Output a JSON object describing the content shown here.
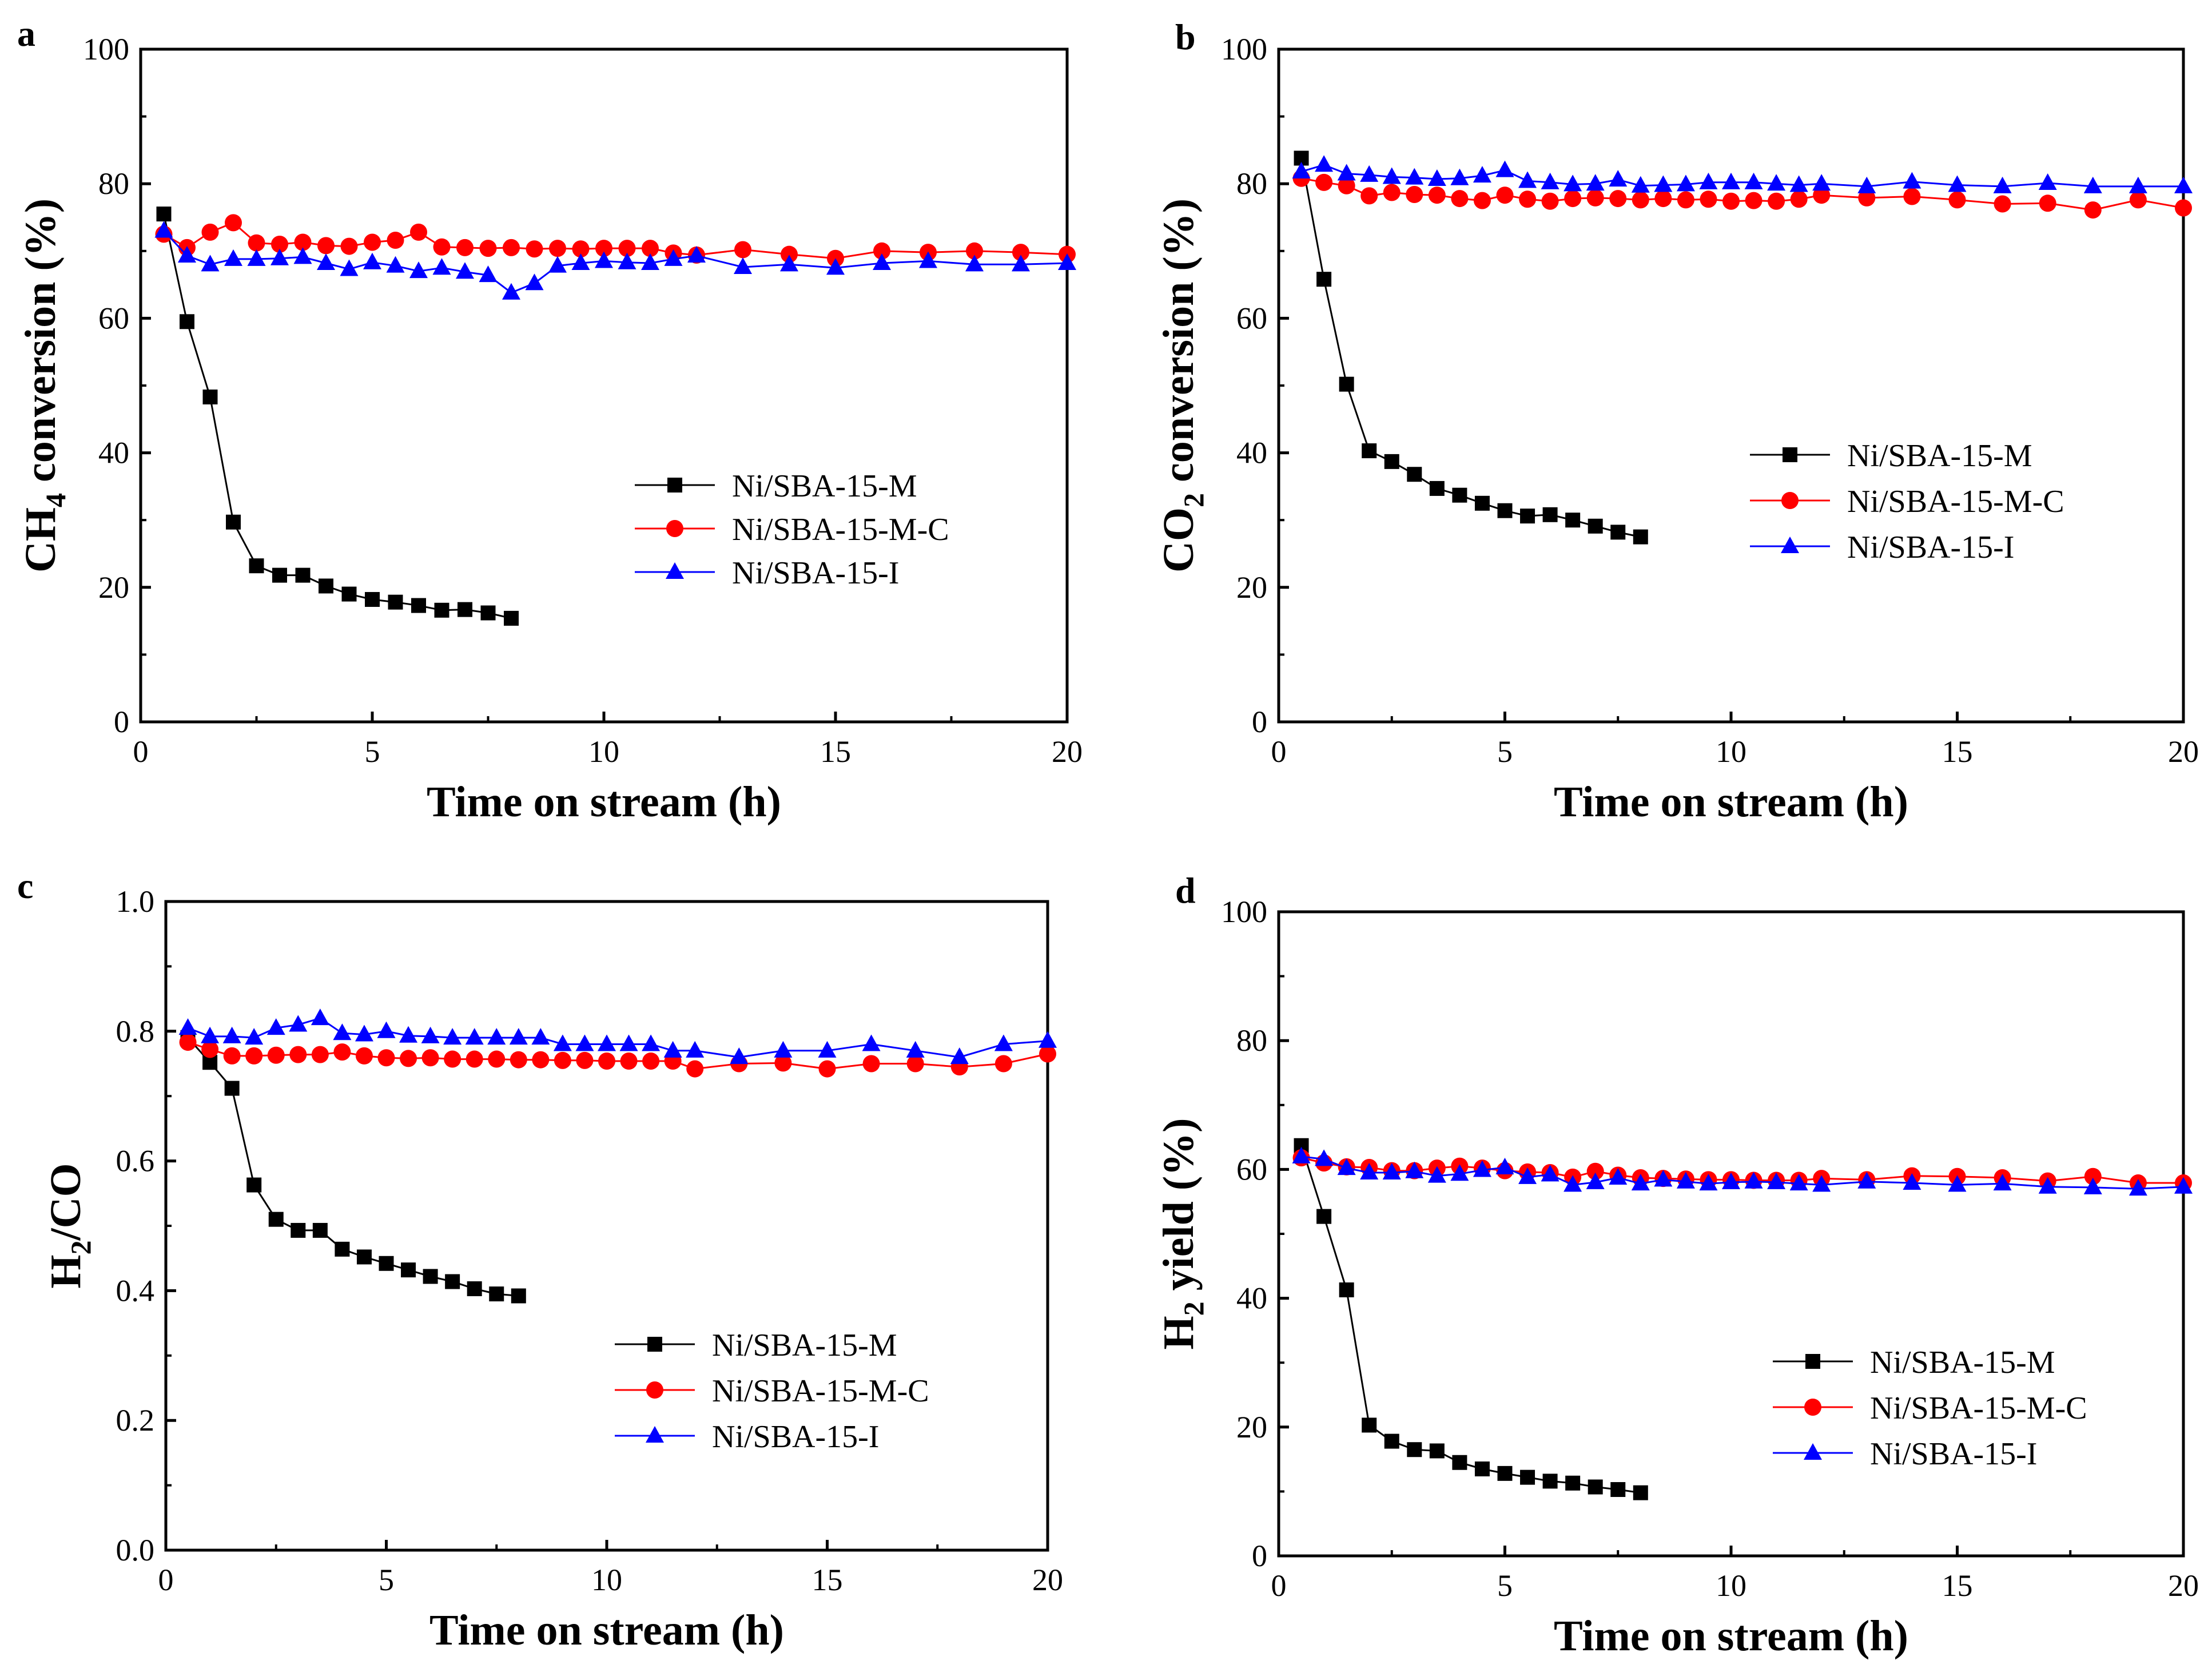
{
  "figure": {
    "series_styles": [
      {
        "name": "Ni/SBA-15-M",
        "color": "#000000",
        "marker": "square"
      },
      {
        "name": "Ni/SBA-15-M-C",
        "color": "#ff0000",
        "marker": "circle"
      },
      {
        "name": "Ni/SBA-15-I",
        "color": "#0000ff",
        "marker": "triangle"
      }
    ]
  },
  "chart_data": [
    {
      "panel": "a",
      "type": "line",
      "title": "",
      "xlabel": "Time on stream (h)",
      "ylabel": {
        "main": "CH",
        "sub": "4",
        "rest": " conversion (%)"
      },
      "xlim": [
        0,
        20
      ],
      "ylim": [
        0,
        100
      ],
      "xticks": [
        "0",
        "5",
        "10",
        "15",
        "20"
      ],
      "yticks": [
        "0",
        "20",
        "40",
        "60",
        "80",
        "100"
      ],
      "legend": "center-right",
      "series": [
        {
          "name": "Ni/SBA-15-M",
          "x": [
            0.5,
            1,
            1.5,
            2,
            2.5,
            3,
            3.5,
            4,
            4.5,
            5,
            5.5,
            6,
            6.5,
            7,
            7.5,
            8
          ],
          "y": [
            75.5,
            59.5,
            48.3,
            29.7,
            23.2,
            21.8,
            21.8,
            20.2,
            19.0,
            18.2,
            17.8,
            17.3,
            16.6,
            16.7,
            16.2,
            15.4
          ]
        },
        {
          "name": "Ni/SBA-15-M-C",
          "x": [
            0.5,
            1,
            1.5,
            2,
            2.5,
            3,
            3.5,
            4,
            4.5,
            5,
            5.5,
            6,
            6.5,
            7,
            7.5,
            8,
            8.5,
            9,
            9.5,
            10,
            10.5,
            11,
            11.5,
            12,
            13,
            14,
            15,
            16,
            17,
            18,
            19,
            20
          ],
          "y": [
            72.5,
            70.5,
            72.8,
            74.2,
            71.2,
            71.0,
            71.3,
            70.8,
            70.7,
            71.3,
            71.6,
            72.8,
            70.6,
            70.5,
            70.4,
            70.5,
            70.3,
            70.4,
            70.3,
            70.4,
            70.4,
            70.4,
            69.7,
            69.4,
            70.2,
            69.5,
            68.9,
            70.0,
            69.8,
            70.0,
            69.8,
            69.5
          ]
        },
        {
          "name": "Ni/SBA-15-I",
          "x": [
            0.5,
            1,
            1.5,
            2,
            2.5,
            3,
            3.5,
            4,
            4.5,
            5,
            5.5,
            6,
            6.5,
            7,
            7.5,
            8,
            8.5,
            9,
            9.5,
            10,
            10.5,
            11,
            11.5,
            12,
            13,
            14,
            15,
            16,
            17,
            18,
            19,
            20
          ],
          "y": [
            73.0,
            69.3,
            68.0,
            68.8,
            68.8,
            68.9,
            69.1,
            68.2,
            67.3,
            68.3,
            67.8,
            67.0,
            67.5,
            66.9,
            66.4,
            63.8,
            65.2,
            67.8,
            68.2,
            68.5,
            68.3,
            68.2,
            68.8,
            69.3,
            67.6,
            68.0,
            67.5,
            68.2,
            68.5,
            68.0,
            68.0,
            68.2
          ]
        }
      ]
    },
    {
      "panel": "b",
      "type": "line",
      "title": "",
      "xlabel": "Time on stream (h)",
      "ylabel": {
        "main": "CO",
        "sub": "2",
        "rest": " conversion (%)"
      },
      "xlim": [
        0,
        20
      ],
      "ylim": [
        0,
        100
      ],
      "xticks": [
        "0",
        "5",
        "10",
        "15",
        "20"
      ],
      "yticks": [
        "0",
        "20",
        "40",
        "60",
        "80",
        "100"
      ],
      "legend": "center-right",
      "series": [
        {
          "name": "Ni/SBA-15-M",
          "x": [
            0.5,
            1,
            1.5,
            2,
            2.5,
            3,
            3.5,
            4,
            4.5,
            5,
            5.5,
            6,
            6.5,
            7,
            7.5,
            8
          ],
          "y": [
            83.8,
            65.8,
            50.2,
            40.3,
            38.7,
            36.8,
            34.7,
            33.7,
            32.5,
            31.4,
            30.6,
            30.8,
            30.0,
            29.1,
            28.2,
            27.5
          ]
        },
        {
          "name": "Ni/SBA-15-M-C",
          "x": [
            0.5,
            1,
            1.5,
            2,
            2.5,
            3,
            3.5,
            4,
            4.5,
            5,
            5.5,
            6,
            6.5,
            7,
            7.5,
            8,
            8.5,
            9,
            9.5,
            10,
            10.5,
            11,
            11.5,
            12,
            13,
            14,
            15,
            16,
            17,
            18,
            19,
            20
          ],
          "y": [
            80.8,
            80.2,
            79.7,
            78.2,
            78.7,
            78.4,
            78.3,
            77.8,
            77.5,
            78.3,
            77.7,
            77.4,
            77.8,
            77.9,
            77.8,
            77.6,
            77.8,
            77.6,
            77.7,
            77.4,
            77.5,
            77.4,
            77.7,
            78.3,
            77.9,
            78.1,
            77.6,
            77.0,
            77.1,
            76.1,
            77.6,
            76.4
          ]
        },
        {
          "name": "Ni/SBA-15-I",
          "x": [
            0.5,
            1,
            1.5,
            2,
            2.5,
            3,
            3.5,
            4,
            4.5,
            5,
            5.5,
            6,
            6.5,
            7,
            7.5,
            8,
            8.5,
            9,
            9.5,
            10,
            10.5,
            11,
            11.5,
            12,
            13,
            14,
            15,
            16,
            17,
            18,
            19,
            20
          ],
          "y": [
            81.8,
            82.8,
            81.5,
            81.3,
            81.0,
            80.9,
            80.7,
            80.8,
            81.2,
            82.0,
            80.4,
            80.2,
            79.9,
            80.0,
            80.6,
            79.7,
            79.8,
            79.9,
            80.2,
            80.2,
            80.2,
            80.0,
            79.8,
            80.0,
            79.6,
            80.3,
            79.8,
            79.6,
            80.1,
            79.6,
            79.6,
            79.6
          ]
        }
      ]
    },
    {
      "panel": "c",
      "type": "line",
      "title": "",
      "xlabel": "Time on stream (h)",
      "ylabel": {
        "main": "H",
        "sub": "2",
        "rest": "/CO"
      },
      "xlim": [
        0,
        20
      ],
      "ylim": [
        0,
        1.0
      ],
      "xticks": [
        "0",
        "5",
        "10",
        "15",
        "20"
      ],
      "yticks": [
        "0.0",
        "0.2",
        "0.4",
        "0.6",
        "0.8",
        "1.0"
      ],
      "legend": "center-right",
      "series": [
        {
          "name": "Ni/SBA-15-M",
          "x": [
            0.5,
            1,
            1.5,
            2,
            2.5,
            3,
            3.5,
            4,
            4.5,
            5,
            5.5,
            6,
            6.5,
            7,
            7.5,
            8
          ],
          "y": [
            0.79,
            0.752,
            0.712,
            0.563,
            0.51,
            0.493,
            0.493,
            0.464,
            0.452,
            0.442,
            0.432,
            0.422,
            0.414,
            0.403,
            0.395,
            0.392
          ]
        },
        {
          "name": "Ni/SBA-15-M-C",
          "x": [
            0.5,
            1,
            1.5,
            2,
            2.5,
            3,
            3.5,
            4,
            4.5,
            5,
            5.5,
            6,
            6.5,
            7,
            7.5,
            8,
            8.5,
            9,
            9.5,
            10,
            10.5,
            11,
            11.5,
            12,
            13,
            14,
            15,
            16,
            17,
            18,
            19,
            20
          ],
          "y": [
            0.783,
            0.772,
            0.762,
            0.762,
            0.763,
            0.764,
            0.764,
            0.768,
            0.762,
            0.759,
            0.758,
            0.759,
            0.757,
            0.757,
            0.757,
            0.756,
            0.756,
            0.755,
            0.755,
            0.754,
            0.754,
            0.754,
            0.754,
            0.742,
            0.75,
            0.751,
            0.742,
            0.75,
            0.75,
            0.745,
            0.75,
            0.765
          ]
        },
        {
          "name": "Ni/SBA-15-I",
          "x": [
            0.5,
            1,
            1.5,
            2,
            2.5,
            3,
            3.5,
            4,
            4.5,
            5,
            5.5,
            6,
            6.5,
            7,
            7.5,
            8,
            8.5,
            9,
            9.5,
            10,
            10.5,
            11,
            11.5,
            12,
            13,
            14,
            15,
            16,
            17,
            18,
            19,
            20
          ],
          "y": [
            0.805,
            0.792,
            0.792,
            0.79,
            0.805,
            0.81,
            0.82,
            0.797,
            0.795,
            0.8,
            0.793,
            0.792,
            0.79,
            0.79,
            0.79,
            0.79,
            0.79,
            0.78,
            0.78,
            0.78,
            0.78,
            0.78,
            0.77,
            0.77,
            0.76,
            0.77,
            0.77,
            0.78,
            0.77,
            0.76,
            0.78,
            0.785
          ]
        }
      ]
    },
    {
      "panel": "d",
      "type": "line",
      "title": "",
      "xlabel": "Time on stream (h)",
      "ylabel": {
        "main": "H",
        "sub": "2",
        "rest": " yield (%)"
      },
      "xlim": [
        0,
        20
      ],
      "ylim": [
        0,
        100
      ],
      "xticks": [
        "0",
        "5",
        "10",
        "15",
        "20"
      ],
      "yticks": [
        "0",
        "20",
        "40",
        "60",
        "80",
        "100"
      ],
      "legend": "lower-right",
      "series": [
        {
          "name": "Ni/SBA-15-M",
          "x": [
            0.5,
            1,
            1.5,
            2,
            2.5,
            3,
            3.5,
            4,
            4.5,
            5,
            5.5,
            6,
            6.5,
            7,
            7.5,
            8
          ],
          "y": [
            63.7,
            52.7,
            41.3,
            20.3,
            17.8,
            16.5,
            16.3,
            14.5,
            13.5,
            12.8,
            12.2,
            11.6,
            11.3,
            10.7,
            10.3,
            9.8
          ]
        },
        {
          "name": "Ni/SBA-15-M-C",
          "x": [
            0.5,
            1,
            1.5,
            2,
            2.5,
            3,
            3.5,
            4,
            4.5,
            5,
            5.5,
            6,
            6.5,
            7,
            7.5,
            8,
            8.5,
            9,
            9.5,
            10,
            10.5,
            11,
            11.5,
            12,
            13,
            14,
            15,
            16,
            17,
            18,
            19,
            20
          ],
          "y": [
            61.8,
            61.0,
            60.4,
            60.3,
            59.8,
            59.8,
            60.2,
            60.5,
            60.2,
            59.8,
            59.6,
            59.5,
            58.8,
            59.7,
            59.1,
            58.7,
            58.6,
            58.5,
            58.4,
            58.4,
            58.3,
            58.3,
            58.3,
            58.6,
            58.4,
            59.0,
            58.9,
            58.7,
            58.2,
            58.9,
            57.9,
            57.9
          ]
        },
        {
          "name": "Ni/SBA-15-I",
          "x": [
            0.5,
            1,
            1.5,
            2,
            2.5,
            3,
            3.5,
            4,
            4.5,
            5,
            5.5,
            6,
            6.5,
            7,
            7.5,
            8,
            8.5,
            9,
            9.5,
            10,
            10.5,
            11,
            11.5,
            12,
            13,
            14,
            15,
            16,
            17,
            18,
            19,
            20
          ],
          "y": [
            62.0,
            61.6,
            60.2,
            59.5,
            59.5,
            59.7,
            59.0,
            59.3,
            59.9,
            60.3,
            58.8,
            59.2,
            57.6,
            58.0,
            58.7,
            57.8,
            58.4,
            58.1,
            57.8,
            58.0,
            58.1,
            58.0,
            57.8,
            57.6,
            58.1,
            57.9,
            57.6,
            57.8,
            57.3,
            57.2,
            57.0,
            57.3
          ]
        }
      ]
    }
  ]
}
